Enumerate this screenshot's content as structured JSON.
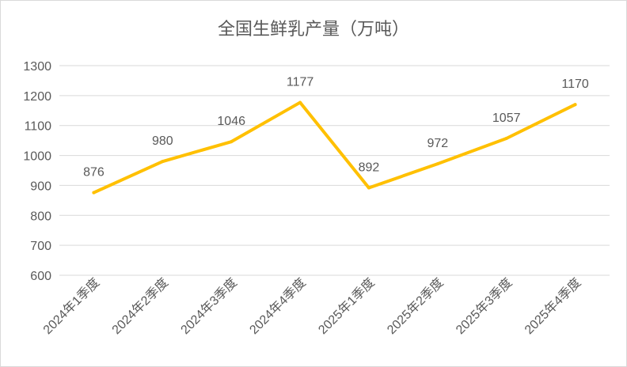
{
  "chart_data": {
    "type": "line",
    "title": "全国生鲜乳产量（万吨）",
    "categories": [
      "2024年1季度",
      "2024年2季度",
      "2024年3季度",
      "2024年4季度",
      "2025年1季度",
      "2025年2季度",
      "2025年3季度",
      "2025年4季度"
    ],
    "series": [
      {
        "values": [
          876,
          980,
          1046,
          1177,
          892,
          972,
          1057,
          1170
        ]
      }
    ],
    "y_ticks": [
      "600",
      "700",
      "800",
      "900",
      "1000",
      "1100",
      "1200",
      "1300"
    ],
    "ylim": [
      600,
      1300
    ],
    "grid": true,
    "data_labels": true,
    "legend": "none",
    "line_color": "#ffc000",
    "grid_color": "#d9d9d9",
    "text_color": "#595959"
  }
}
